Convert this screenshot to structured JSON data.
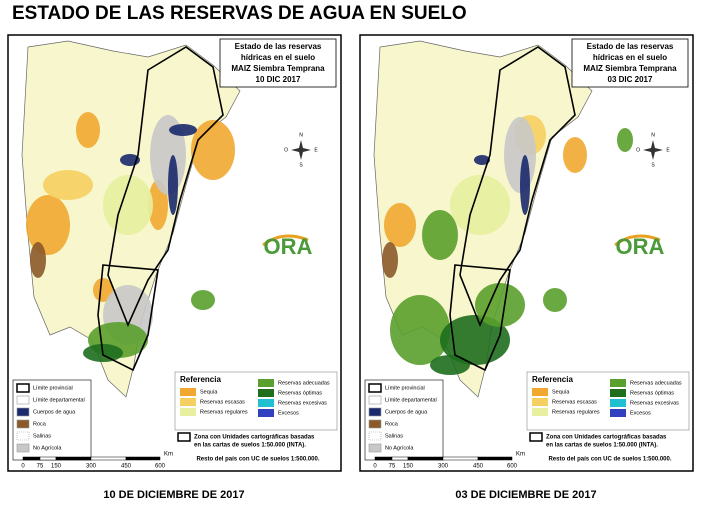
{
  "title": "ESTADO DE LAS RESERVAS DE AGUA EN SUELO",
  "maps": [
    {
      "heading": [
        "Estado de las reservas",
        "hídricas en el suelo",
        "MAIZ Siembra Temprana",
        "10 DIC 2017"
      ],
      "caption": "10 DE DICIEMBRE DE 2017"
    },
    {
      "heading": [
        "Estado de las reservas",
        "hídricas en el suelo",
        "MAIZ Siembra Temprana",
        "03 DIC 2017"
      ],
      "caption": "03 DE DICIEMBRE DE 2017"
    }
  ],
  "legend": {
    "boundaries": [
      "Límite provincial",
      "Límite departamental",
      "Cuerpos de agua",
      "Roca",
      "Salinas",
      "No Agrícola"
    ],
    "reference_title": "Referencia",
    "reference": [
      "Sequía",
      "Reservas escasas",
      "Reservas regulares",
      "Reservas adecuadas",
      "Reservas óptimas",
      "Reservas excesivas",
      "Excesos"
    ],
    "note": [
      "Zona con Unidades cartográficas basadas",
      "en las cartas de suelos 1:50.000 (INTA).",
      "Resto del país con UC de suelos 1:500.000."
    ],
    "scale": [
      "0",
      "75",
      "150",
      "300",
      "450",
      "600"
    ],
    "scale_unit": "Km",
    "logo": "ORA",
    "compass": [
      "N",
      "S",
      "E",
      "O"
    ]
  }
}
